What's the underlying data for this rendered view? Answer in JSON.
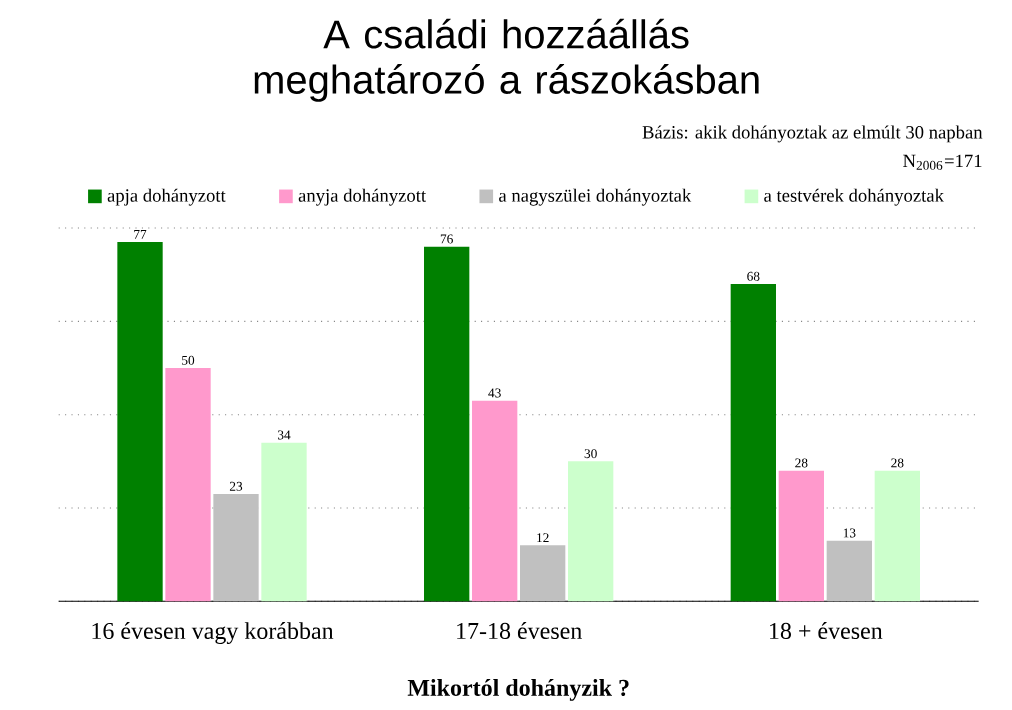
{
  "chart_data": {
    "type": "bar",
    "title": "A családi hozzáállás meghatározó a rászokásban",
    "xlabel": "Mikortól dohányzik ?",
    "annotations": [
      "Bázis: akik dohányoztak az elmúlt 30 napban",
      "N$_{2006}$=171"
    ],
    "categories": [
      "16 évesen vagy korábban",
      "17-18 évesen",
      "18 + évesen"
    ],
    "series": [
      {
        "name": "apja dohányzott",
        "color": "#008000",
        "values": [
          77,
          76,
          68
        ]
      },
      {
        "name": "anyja dohányzott",
        "color": "#ff99cc",
        "values": [
          50,
          43,
          28
        ]
      },
      {
        "name": "a nagyszülei dohányoztak",
        "color": "#c0c0c0",
        "values": [
          23,
          12,
          13
        ]
      },
      {
        "name": "a testvérek dohányoztak",
        "color": "#ccffcc",
        "values": [
          34,
          30,
          28
        ]
      }
    ],
    "ylim": [
      0,
      80
    ],
    "tick_labels": "x",
    "grid": "y",
    "legend": "top",
    "data_labels": true
  }
}
